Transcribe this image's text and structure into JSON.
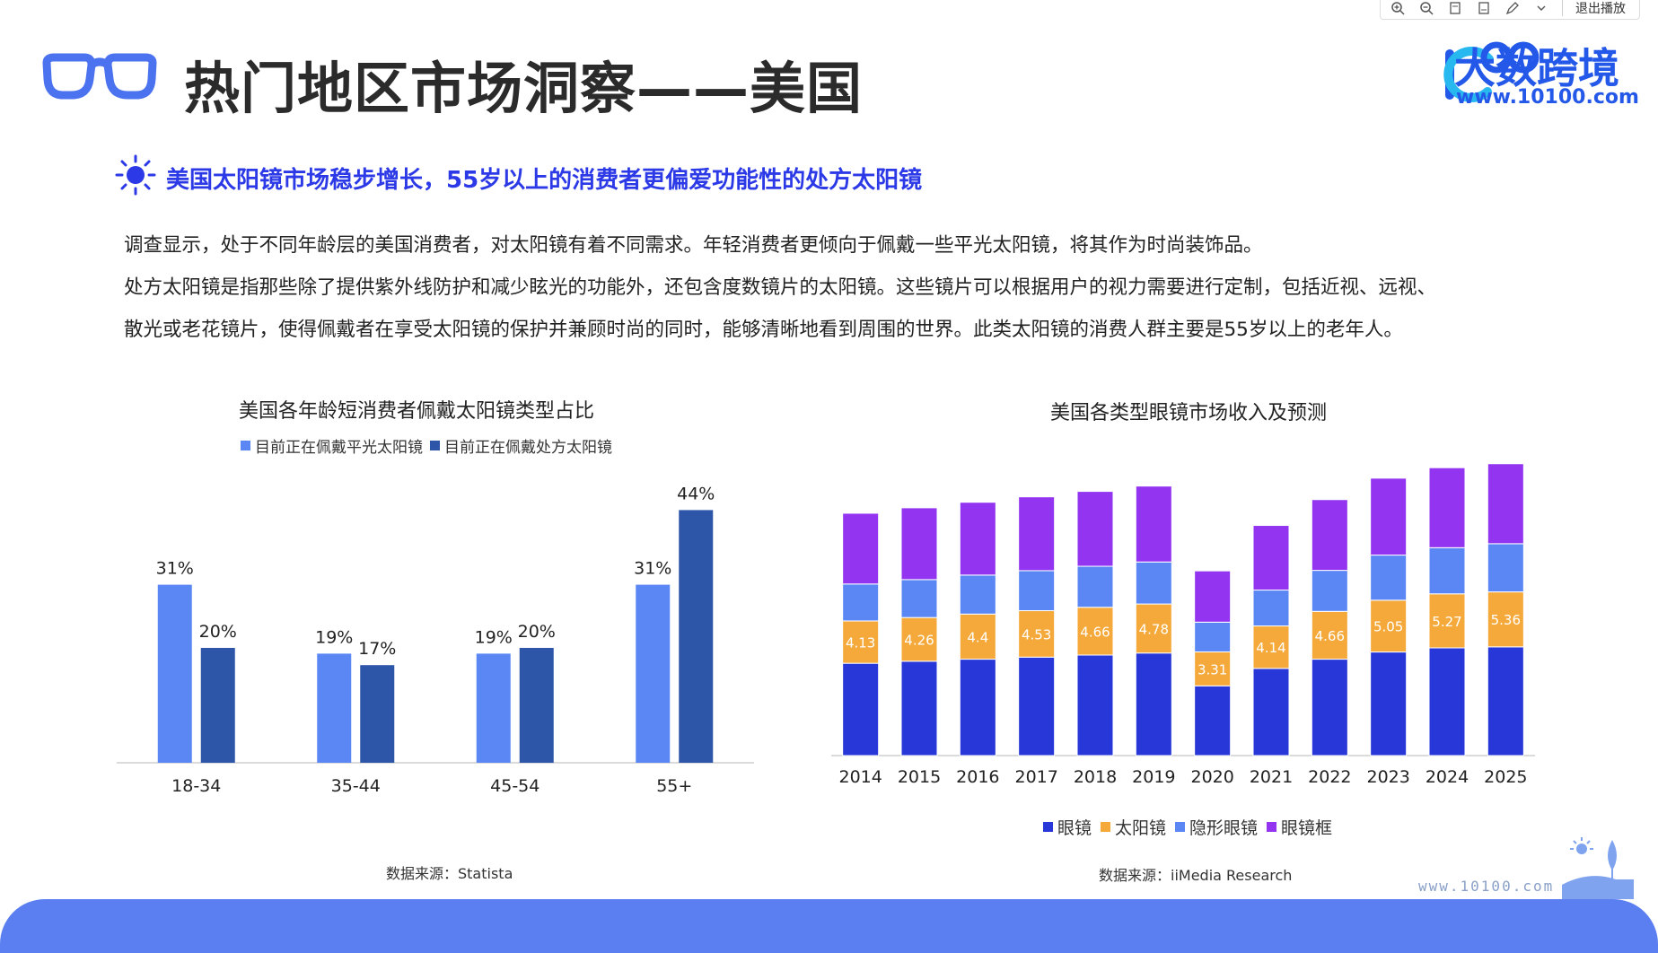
{
  "toolbar": {
    "exit_label": "退出播放",
    "icons": [
      "zoom-in-icon",
      "zoom-out-icon",
      "page-prev-icon",
      "page-next-icon",
      "pen-icon",
      "chevron-down-icon"
    ]
  },
  "header": {
    "title": "热门地区市场洞察——美国",
    "logo_text": "大数跨境",
    "logo_url": "www.10100.com"
  },
  "subheading": "美国太阳镜市场稳步增长，55岁以上的消费者更偏爱功能性的处方太阳镜",
  "body": {
    "line1": "调查显示，处于不同年龄层的美国消费者，对太阳镜有着不同需求。年轻消费者更倾向于佩戴一些平光太阳镜，将其作为时尚装饰品。",
    "line2": "处方太阳镜是指那些除了提供紫外线防护和减少眩光的功能外，还包含度数镜片的太阳镜。这些镜片可以根据用户的视力需要进行定制，包括近视、远视、",
    "line3": "散光或老花镜片，使得佩戴者在享受太阳镜的保护并兼顾时尚的同时，能够清晰地看到周围的世界。此类太阳镜的消费人群主要是55岁以上的老年人。"
  },
  "colors": {
    "accent": "#2c39e6",
    "light_blue": "#5b87f5",
    "dark_blue": "#2d55a8",
    "glasses": "#2737d8",
    "sunglasses": "#f5a93a",
    "contacts": "#5b87f5",
    "frames": "#9234f0",
    "band": "#5b7ff0"
  },
  "chart_data": [
    {
      "type": "bar",
      "title": "美国各年龄短消费者佩戴太阳镜类型占比",
      "categories": [
        "18-34",
        "35-44",
        "45-54",
        "55+"
      ],
      "series": [
        {
          "name": "目前正在佩戴平光太阳镜",
          "values": [
            31,
            19,
            19,
            31
          ],
          "labels": [
            "31%",
            "19%",
            "19%",
            "31%"
          ]
        },
        {
          "name": "目前正在佩戴处方太阳镜",
          "values": [
            20,
            17,
            20,
            44
          ],
          "labels": [
            "20%",
            "17%",
            "20%",
            "44%"
          ]
        }
      ],
      "ylim": [
        0,
        50
      ],
      "legend": "top",
      "source": "数据来源：Statista"
    },
    {
      "type": "bar",
      "stacked": true,
      "title": "美国各类型眼镜市场收入及预测",
      "categories": [
        "2014",
        "2015",
        "2016",
        "2017",
        "2018",
        "2019",
        "2020",
        "2021",
        "2022",
        "2023",
        "2024",
        "2025"
      ],
      "series": [
        {
          "name": "眼镜",
          "values": [
            9.0,
            9.2,
            9.4,
            9.6,
            9.8,
            10.0,
            6.8,
            8.5,
            9.4,
            10.1,
            10.5,
            10.6
          ]
        },
        {
          "name": "太阳镜",
          "values": [
            4.13,
            4.26,
            4.4,
            4.53,
            4.66,
            4.78,
            3.31,
            4.14,
            4.66,
            5.05,
            5.27,
            5.36
          ],
          "labels": [
            "4.13",
            "4.26",
            "4.4",
            "4.53",
            "4.66",
            "4.78",
            "3.31",
            "4.14",
            "4.66",
            "5.05",
            "5.27",
            "5.36"
          ]
        },
        {
          "name": "隐形眼镜",
          "values": [
            3.6,
            3.7,
            3.8,
            3.9,
            4.0,
            4.1,
            2.9,
            3.5,
            4.0,
            4.4,
            4.5,
            4.7
          ]
        },
        {
          "name": "眼镜框",
          "values": [
            6.9,
            7.0,
            7.1,
            7.2,
            7.3,
            7.4,
            5.0,
            6.3,
            6.9,
            7.5,
            7.8,
            7.8
          ]
        }
      ],
      "ylim": [
        0,
        28
      ],
      "legend": "bottom",
      "source": "数据来源：iiMedia Research"
    }
  ],
  "footer": {
    "corner_url": "www.10100.com"
  }
}
